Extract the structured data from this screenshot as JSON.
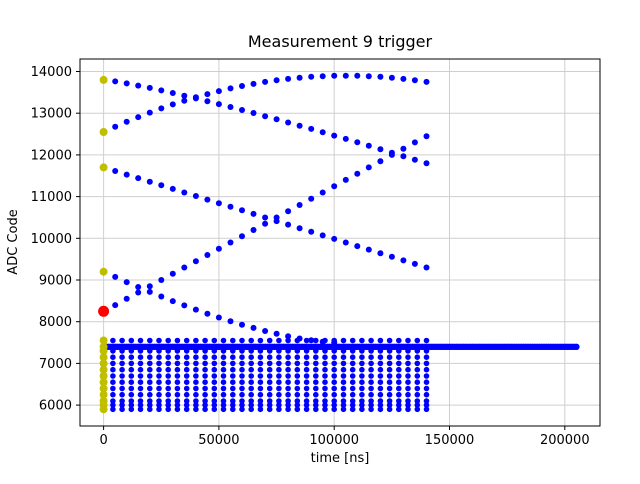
{
  "title": "Measurement 9 trigger",
  "chart_data": {
    "type": "scatter",
    "title": "Measurement 9 trigger",
    "xlabel": "time [ns]",
    "ylabel": "ADC Code",
    "xlim": [
      -10250,
      215250
    ],
    "ylim": [
      5500,
      14300
    ],
    "x_ticks": [
      0,
      50000,
      100000,
      150000,
      200000
    ],
    "y_ticks": [
      6000,
      7000,
      8000,
      9000,
      10000,
      11000,
      12000,
      13000,
      14000
    ],
    "grid": true,
    "legend": "none",
    "colors": {
      "samples": "#0000ff",
      "start_markers": "#bfbf00",
      "trigger_marker": "#ff0000",
      "grid": "#cfcfcf",
      "spine": "#000000"
    },
    "series": [
      {
        "name": "falling-arc-1",
        "color": "#0000ff",
        "r": 3,
        "x0": 0,
        "dx": 5000,
        "y": [
          13800,
          13763,
          13716,
          13663,
          13606,
          13547,
          13485,
          13421,
          13356,
          13288,
          13219,
          13148,
          13077,
          13004,
          12929,
          12854,
          12778,
          12701,
          12623,
          12544,
          12464,
          12384,
          12303,
          12221,
          12138,
          12054,
          11970,
          11885,
          11800
        ]
      },
      {
        "name": "rising-arc-1",
        "color": "#0000ff",
        "r": 3,
        "x0": 0,
        "dx": 5000,
        "y": [
          12550,
          12676,
          12795,
          12908,
          13015,
          13116,
          13211,
          13300,
          13383,
          13459,
          13530,
          13594,
          13652,
          13704,
          13750,
          13790,
          13824,
          13851,
          13872,
          13888,
          13897,
          13900,
          13897,
          13888,
          13872,
          13851,
          13824,
          13790,
          13750
        ]
      },
      {
        "name": "falling-arc-2",
        "color": "#0000ff",
        "r": 3,
        "x0": 0,
        "dx": 5000,
        "y": [
          11700,
          11614,
          11529,
          11443,
          11357,
          11271,
          11186,
          11100,
          11014,
          10929,
          10843,
          10757,
          10671,
          10586,
          10500,
          10414,
          10329,
          10243,
          10157,
          10071,
          9986,
          9900,
          9814,
          9729,
          9643,
          9557,
          9471,
          9386,
          9300
        ]
      },
      {
        "name": "rising-arc-2",
        "color": "#0000ff",
        "r": 3,
        "x0": 0,
        "dx": 5000,
        "y": [
          8250,
          8400,
          8550,
          8700,
          8850,
          9000,
          9150,
          9300,
          9450,
          9600,
          9750,
          9900,
          10050,
          10200,
          10350,
          10500,
          10650,
          10800,
          10950,
          11100,
          11250,
          11400,
          11550,
          11700,
          11850,
          12000,
          12150,
          12300,
          12450
        ]
      },
      {
        "name": "falling-arc-3",
        "color": "#0000ff",
        "r": 3,
        "x0": 0,
        "dx": 5000,
        "y": [
          9200,
          9074,
          8951,
          8832,
          8716,
          8604,
          8496,
          8391,
          8290,
          8193,
          8101,
          8013,
          7930,
          7852,
          7779,
          7713,
          7652,
          7599,
          7554,
          7519,
          7500
        ]
      },
      {
        "name": "adc-code-rows",
        "color": "#0000ff",
        "r": 2.8,
        "rows_y": [
          7550,
          7300,
          7150,
          7000,
          6850,
          6700,
          6550,
          6400,
          6250,
          6100,
          6000,
          5900
        ],
        "x0": 0,
        "x1": 140000,
        "dx": 4000
      },
      {
        "name": "baseline-band",
        "color": "#0000ff",
        "r": 3.2,
        "row": {
          "y": 7400,
          "x0": 0,
          "x1": 205000,
          "dx": 1000
        }
      },
      {
        "name": "start-markers",
        "color": "#bfbf00",
        "r": 4,
        "points": [
          [
            0,
            13800
          ],
          [
            0,
            12550
          ],
          [
            0,
            11700
          ],
          [
            0,
            9200
          ],
          [
            0,
            7550
          ],
          [
            0,
            7400
          ],
          [
            0,
            7300
          ],
          [
            0,
            7150
          ],
          [
            0,
            7000
          ],
          [
            0,
            6850
          ],
          [
            0,
            6700
          ],
          [
            0,
            6550
          ],
          [
            0,
            6400
          ],
          [
            0,
            6250
          ],
          [
            0,
            6100
          ],
          [
            0,
            6000
          ],
          [
            0,
            5900
          ]
        ]
      },
      {
        "name": "trigger-point",
        "color": "#ff0000",
        "r": 5.5,
        "points": [
          [
            0,
            8250
          ]
        ]
      }
    ]
  }
}
